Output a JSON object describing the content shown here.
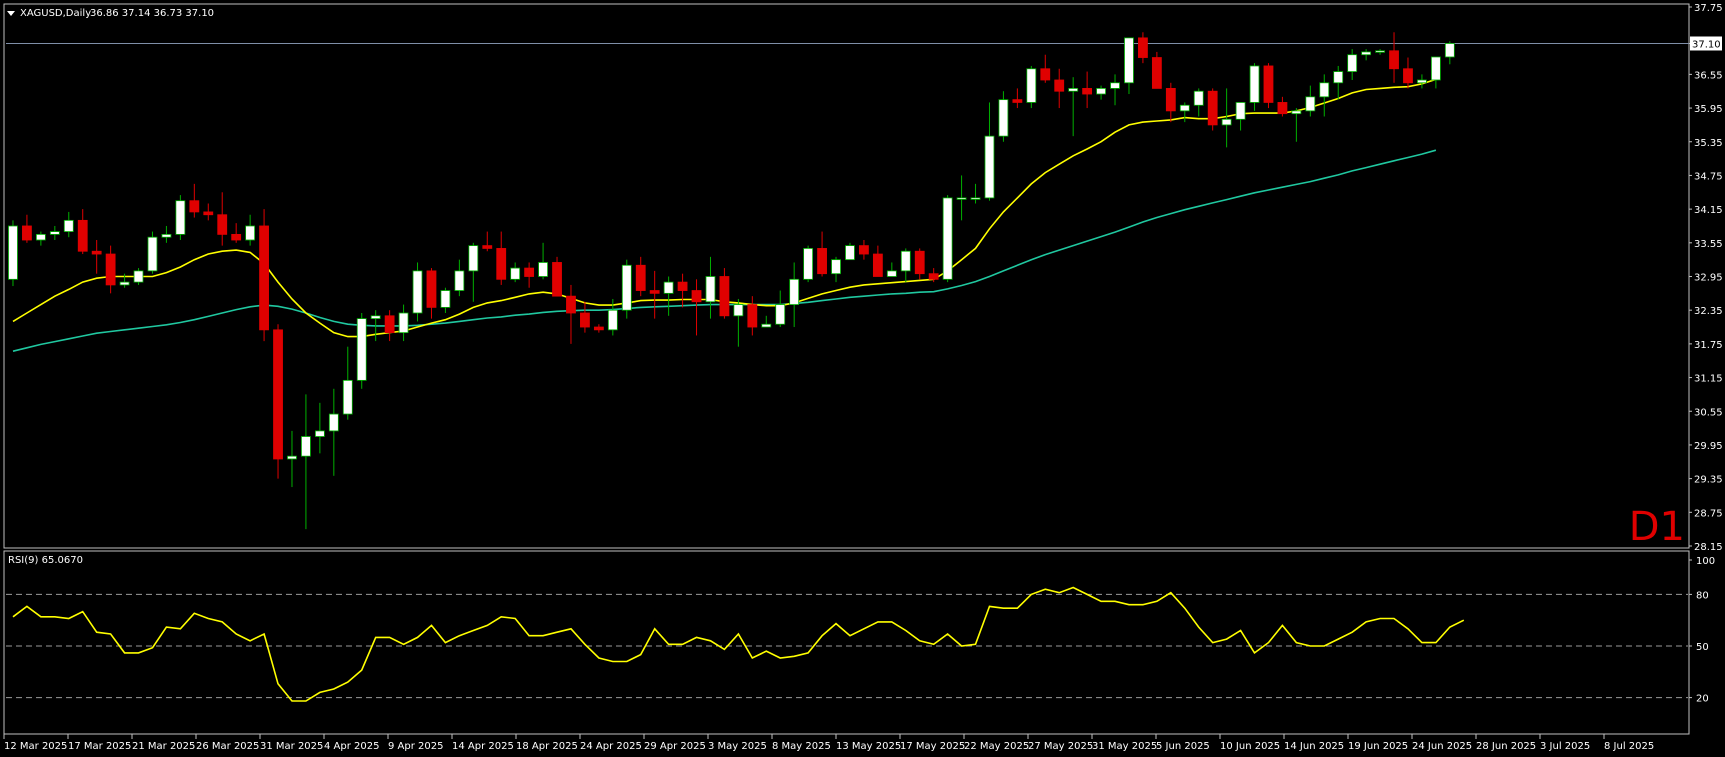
{
  "header": {
    "symbol_label": "XAGUSD,Daily",
    "ohlc_label": "36.86 37.14 36.73 37.10",
    "timeframe_label": "D1"
  },
  "indicator": {
    "label": "RSI(9) 65.0670"
  },
  "colors": {
    "background": "#000000",
    "frame": "#c0c0c0",
    "bull_body": "#ffffff",
    "bear_body": "#e00000",
    "bull_wick": "#00b000",
    "bear_wick": "#e00000",
    "ma_fast": "#ffff00",
    "ma_slow": "#20c8a0",
    "rsi_line": "#ffff00",
    "price_line": "#7f8fa8",
    "timeframe": "#e00000"
  },
  "chart_data": [
    {
      "type": "candlestick",
      "symbol": "XAGUSD",
      "timeframe": "Daily",
      "last_price": 37.1,
      "ylim": [
        28.15,
        37.75
      ],
      "y_ticks": [
        "37.75",
        "37.10",
        "36.55",
        "35.95",
        "35.35",
        "34.75",
        "34.15",
        "33.55",
        "32.95",
        "32.35",
        "31.75",
        "31.15",
        "30.55",
        "29.95",
        "29.35",
        "28.75",
        "28.15"
      ],
      "x_ticks": [
        "12 Mar 2025",
        "17 Mar 2025",
        "21 Mar 2025",
        "26 Mar 2025",
        "31 Mar 2025",
        "4 Apr 2025",
        "9 Apr 2025",
        "14 Apr 2025",
        "18 Apr 2025",
        "24 Apr 2025",
        "29 Apr 2025",
        "3 May 2025",
        "8 May 2025",
        "13 May 2025",
        "17 May 2025",
        "22 May 2025",
        "27 May 2025",
        "31 May 2025",
        "5 Jun 2025",
        "10 Jun 2025",
        "14 Jun 2025",
        "19 Jun 2025",
        "24 Jun 2025",
        "28 Jun 2025",
        "3 Jul 2025",
        "8 Jul 2025"
      ],
      "candles": [
        [
          32.9,
          33.95,
          32.78,
          33.85
        ],
        [
          33.85,
          34.05,
          33.55,
          33.6
        ],
        [
          33.6,
          33.75,
          33.5,
          33.7
        ],
        [
          33.7,
          33.85,
          33.6,
          33.75
        ],
        [
          33.75,
          34.1,
          33.65,
          33.95
        ],
        [
          33.95,
          34.15,
          33.35,
          33.4
        ],
        [
          33.4,
          33.6,
          33.0,
          33.35
        ],
        [
          33.35,
          33.5,
          32.65,
          32.8
        ],
        [
          32.8,
          33.0,
          32.75,
          32.85
        ],
        [
          32.85,
          33.1,
          32.8,
          33.05
        ],
        [
          33.05,
          33.75,
          33.0,
          33.65
        ],
        [
          33.65,
          33.85,
          33.55,
          33.7
        ],
        [
          33.7,
          34.4,
          33.6,
          34.3
        ],
        [
          34.3,
          34.6,
          34.0,
          34.1
        ],
        [
          34.1,
          34.25,
          33.95,
          34.05
        ],
        [
          34.05,
          34.45,
          33.5,
          33.7
        ],
        [
          33.7,
          33.9,
          33.55,
          33.6
        ],
        [
          33.6,
          34.05,
          33.5,
          33.85
        ],
        [
          33.85,
          34.15,
          31.8,
          32.0
        ],
        [
          32.0,
          32.1,
          29.35,
          29.7
        ],
        [
          29.7,
          30.2,
          29.2,
          29.75
        ],
        [
          29.75,
          30.85,
          28.45,
          30.1
        ],
        [
          30.1,
          30.7,
          29.8,
          30.2
        ],
        [
          30.2,
          30.95,
          29.4,
          30.5
        ],
        [
          30.5,
          31.7,
          30.4,
          31.1
        ],
        [
          31.1,
          32.3,
          30.95,
          32.2
        ],
        [
          32.2,
          32.35,
          31.8,
          32.25
        ],
        [
          32.25,
          32.35,
          31.8,
          31.95
        ],
        [
          31.95,
          32.45,
          31.8,
          32.3
        ],
        [
          32.3,
          33.2,
          32.15,
          33.05
        ],
        [
          33.05,
          33.1,
          32.2,
          32.4
        ],
        [
          32.4,
          32.75,
          32.3,
          32.7
        ],
        [
          32.7,
          33.25,
          32.6,
          33.05
        ],
        [
          33.05,
          33.55,
          32.5,
          33.5
        ],
        [
          33.5,
          33.75,
          33.4,
          33.45
        ],
        [
          33.45,
          33.75,
          32.8,
          32.9
        ],
        [
          32.9,
          33.2,
          32.85,
          33.1
        ],
        [
          33.1,
          33.2,
          32.75,
          32.95
        ],
        [
          32.95,
          33.55,
          32.9,
          33.2
        ],
        [
          33.2,
          33.3,
          32.65,
          32.6
        ],
        [
          32.6,
          32.8,
          31.75,
          32.3
        ],
        [
          32.3,
          32.5,
          31.95,
          32.05
        ],
        [
          32.05,
          32.1,
          31.95,
          32.0
        ],
        [
          32.0,
          32.55,
          31.9,
          32.35
        ],
        [
          32.35,
          33.25,
          32.2,
          33.15
        ],
        [
          33.15,
          33.3,
          32.6,
          32.7
        ],
        [
          32.7,
          33.05,
          32.2,
          32.65
        ],
        [
          32.65,
          32.95,
          32.25,
          32.85
        ],
        [
          32.85,
          33.0,
          32.4,
          32.7
        ],
        [
          32.7,
          32.9,
          31.9,
          32.5
        ],
        [
          32.5,
          33.3,
          32.2,
          32.95
        ],
        [
          32.95,
          33.1,
          32.2,
          32.25
        ],
        [
          32.25,
          32.55,
          31.7,
          32.45
        ],
        [
          32.45,
          32.6,
          31.9,
          32.05
        ],
        [
          32.05,
          32.25,
          32.05,
          32.1
        ],
        [
          32.1,
          32.7,
          32.05,
          32.45
        ],
        [
          32.45,
          33.2,
          32.05,
          32.9
        ],
        [
          32.9,
          33.5,
          32.85,
          33.45
        ],
        [
          33.45,
          33.75,
          32.95,
          33.0
        ],
        [
          33.0,
          33.3,
          32.85,
          33.25
        ],
        [
          33.25,
          33.55,
          33.25,
          33.5
        ],
        [
          33.5,
          33.6,
          33.25,
          33.35
        ],
        [
          33.35,
          33.5,
          33.0,
          32.95
        ],
        [
          32.95,
          33.2,
          32.95,
          33.05
        ],
        [
          33.05,
          33.45,
          32.85,
          33.4
        ],
        [
          33.4,
          33.45,
          32.9,
          33.0
        ],
        [
          33.0,
          33.1,
          32.85,
          32.9
        ],
        [
          32.9,
          34.4,
          32.85,
          34.35
        ],
        [
          34.35,
          34.75,
          33.95,
          34.35
        ],
        [
          34.35,
          34.6,
          34.25,
          34.35
        ],
        [
          34.35,
          36.05,
          34.3,
          35.45
        ],
        [
          35.45,
          36.25,
          35.35,
          36.1
        ],
        [
          36.1,
          36.3,
          35.95,
          36.05
        ],
        [
          36.05,
          36.7,
          35.95,
          36.65
        ],
        [
          36.65,
          36.9,
          36.4,
          36.45
        ],
        [
          36.45,
          36.65,
          35.95,
          36.25
        ],
        [
          36.25,
          36.5,
          35.45,
          36.3
        ],
        [
          36.3,
          36.6,
          35.95,
          36.2
        ],
        [
          36.2,
          36.35,
          36.1,
          36.3
        ],
        [
          36.3,
          36.55,
          36.0,
          36.4
        ],
        [
          36.4,
          37.2,
          36.2,
          37.2
        ],
        [
          37.2,
          37.3,
          36.75,
          36.85
        ],
        [
          36.85,
          36.95,
          36.3,
          36.3
        ],
        [
          36.3,
          36.4,
          35.7,
          35.9
        ],
        [
          35.9,
          36.05,
          35.7,
          36.0
        ],
        [
          36.0,
          36.3,
          35.8,
          36.25
        ],
        [
          36.25,
          36.3,
          35.55,
          35.65
        ],
        [
          35.65,
          36.3,
          35.25,
          35.75
        ],
        [
          35.75,
          36.0,
          35.55,
          36.05
        ],
        [
          36.05,
          36.75,
          35.9,
          36.7
        ],
        [
          36.7,
          36.75,
          35.95,
          36.05
        ],
        [
          36.05,
          36.15,
          35.8,
          35.85
        ],
        [
          35.85,
          35.95,
          35.35,
          35.9
        ],
        [
          35.9,
          36.35,
          35.8,
          36.15
        ],
        [
          36.15,
          36.55,
          35.8,
          36.4
        ],
        [
          36.4,
          36.7,
          36.1,
          36.6
        ],
        [
          36.6,
          37.0,
          36.45,
          36.9
        ],
        [
          36.9,
          37.0,
          36.8,
          36.95
        ],
        [
          36.95,
          37.0,
          36.9,
          36.97
        ],
        [
          36.97,
          37.3,
          36.4,
          36.65
        ],
        [
          36.65,
          36.85,
          36.3,
          36.4
        ],
        [
          36.4,
          36.55,
          36.3,
          36.45
        ],
        [
          36.45,
          36.85,
          36.3,
          36.86
        ],
        [
          36.86,
          37.14,
          36.73,
          37.1
        ]
      ],
      "ma_fast": [
        32.15,
        32.3,
        32.45,
        32.6,
        32.72,
        32.85,
        32.92,
        32.95,
        32.95,
        32.95,
        32.95,
        33.02,
        33.12,
        33.25,
        33.35,
        33.4,
        33.42,
        33.38,
        33.18,
        32.85,
        32.55,
        32.3,
        32.12,
        31.95,
        31.88,
        31.88,
        31.92,
        31.95,
        31.98,
        32.05,
        32.12,
        32.18,
        32.28,
        32.4,
        32.48,
        32.52,
        32.58,
        32.64,
        32.67,
        32.64,
        32.56,
        32.48,
        32.44,
        32.44,
        32.48,
        32.52,
        32.53,
        32.53,
        32.54,
        32.54,
        32.54,
        32.5,
        32.48,
        32.45,
        32.43,
        32.43,
        32.48,
        32.56,
        32.64,
        32.7,
        32.76,
        32.8,
        32.82,
        32.84,
        32.86,
        32.88,
        32.9,
        33.05,
        33.25,
        33.45,
        33.8,
        34.1,
        34.35,
        34.6,
        34.8,
        34.95,
        35.1,
        35.22,
        35.35,
        35.52,
        35.65,
        35.7,
        35.72,
        35.74,
        35.78,
        35.76,
        35.76,
        35.8,
        35.85,
        35.86,
        35.86,
        35.86,
        35.9,
        35.96,
        36.04,
        36.12,
        36.22,
        36.28,
        36.3,
        36.32,
        36.33,
        36.38,
        36.46
      ],
      "ma_slow": [
        31.62,
        31.68,
        31.74,
        31.79,
        31.84,
        31.89,
        31.94,
        31.97,
        32.0,
        32.03,
        32.06,
        32.09,
        32.13,
        32.18,
        32.24,
        32.3,
        32.36,
        32.41,
        32.44,
        32.42,
        32.37,
        32.3,
        32.22,
        32.15,
        32.1,
        32.08,
        32.07,
        32.07,
        32.07,
        32.08,
        32.1,
        32.12,
        32.15,
        32.18,
        32.21,
        32.23,
        32.26,
        32.28,
        32.31,
        32.33,
        32.34,
        32.35,
        32.35,
        32.36,
        32.38,
        32.4,
        32.41,
        32.42,
        32.43,
        32.44,
        32.45,
        32.45,
        32.45,
        32.45,
        32.45,
        32.45,
        32.47,
        32.49,
        32.52,
        32.55,
        32.58,
        32.6,
        32.62,
        32.64,
        32.65,
        32.67,
        32.68,
        32.73,
        32.79,
        32.86,
        32.95,
        33.05,
        33.15,
        33.25,
        33.34,
        33.42,
        33.5,
        33.58,
        33.66,
        33.74,
        33.83,
        33.92,
        34.0,
        34.07,
        34.14,
        34.2,
        34.26,
        34.32,
        34.38,
        34.44,
        34.49,
        34.54,
        34.59,
        34.64,
        34.7,
        34.76,
        34.83,
        34.89,
        34.95,
        35.01,
        35.07,
        35.13,
        35.2
      ]
    },
    {
      "type": "line",
      "name": "RSI(9)",
      "current_value": 65.067,
      "ylim": [
        0,
        100
      ],
      "y_ticks": [
        "100",
        "80",
        "50",
        "20",
        "0"
      ],
      "levels": [
        80,
        50,
        20
      ],
      "values": [
        67,
        73,
        67,
        67,
        66,
        70,
        58,
        57,
        46,
        46,
        49,
        61,
        60,
        69,
        66,
        64,
        57,
        53,
        57,
        28,
        18,
        18,
        23,
        25,
        29,
        36,
        55,
        55,
        51,
        55,
        62,
        52,
        56,
        59,
        62,
        67,
        66,
        56,
        56,
        58,
        60,
        51,
        43,
        41,
        41,
        45,
        60,
        51,
        51,
        55,
        53,
        48,
        57,
        43,
        47,
        43,
        44,
        46,
        56,
        63,
        56,
        60,
        64,
        64,
        59,
        53,
        51,
        57,
        50,
        51,
        73,
        72,
        72,
        80,
        83,
        81,
        84,
        80,
        76,
        76,
        74,
        74,
        76,
        81,
        72,
        61,
        52,
        54,
        59,
        46,
        52,
        62,
        52,
        50,
        50,
        54,
        58,
        64,
        66,
        66,
        60,
        52,
        52,
        61,
        65
      ]
    }
  ]
}
